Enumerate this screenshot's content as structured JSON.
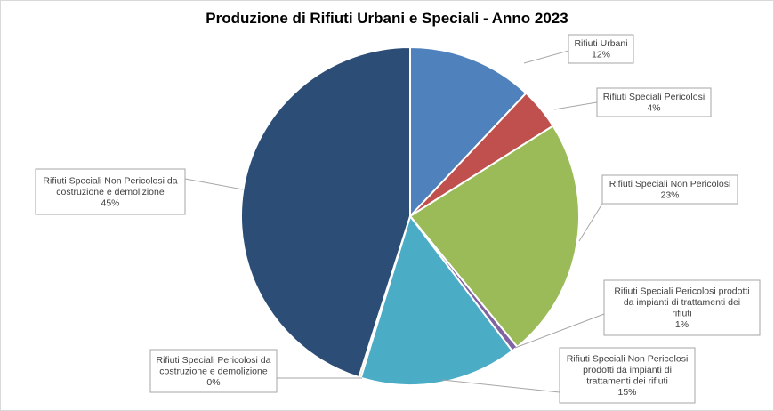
{
  "chart_data": {
    "type": "pie",
    "title": "Produzione di Rifiuti Urbani  e Speciali - Anno 2023",
    "slices": [
      {
        "label": "Rifiuti Urbani",
        "percent_label": "12%",
        "value": 12,
        "color": "#4f81bd"
      },
      {
        "label": "Rifiuti Speciali Pericolosi",
        "percent_label": "4%",
        "value": 4,
        "color": "#c0504d"
      },
      {
        "label": "Rifiuti Speciali Non Pericolosi",
        "percent_label": "23%",
        "value": 23,
        "color": "#9bbb59"
      },
      {
        "label": "Rifiuti Speciali Pericolosi prodotti da impianti di trattamenti dei rifiuti",
        "percent_label": "1%",
        "value": 0.6,
        "color": "#8064a2"
      },
      {
        "label": "Rifiuti Speciali Non Pericolosi prodotti da impianti di trattamenti dei rifiuti",
        "percent_label": "15%",
        "value": 15,
        "color": "#4bacc6"
      },
      {
        "label": "Rifiuti Speciali Pericolosi da costruzione e demolizione",
        "percent_label": "0%",
        "value": 0.2,
        "color": "#f79646"
      },
      {
        "label": "Rifiuti Speciali Non Pericolosi da costruzione e demolizione",
        "percent_label": "45%",
        "value": 45,
        "color": "#2c4d75"
      }
    ]
  }
}
